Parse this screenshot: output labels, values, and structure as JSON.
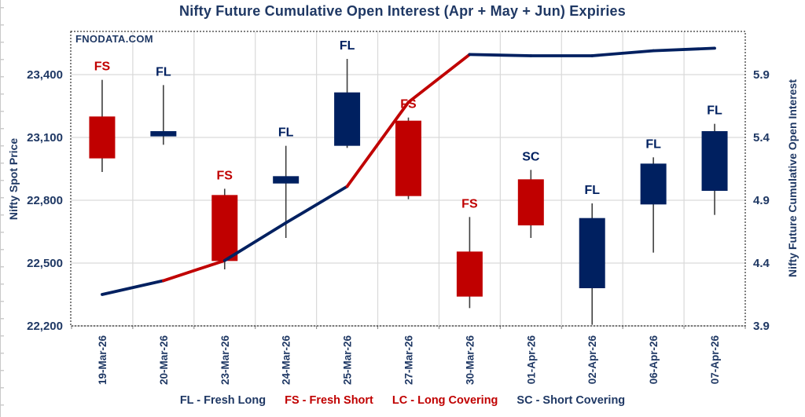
{
  "title": "Nifty Future Cumulative Open Interest (Apr + May + Jun) Expiries",
  "watermark": "FNODATA.COM",
  "legend": {
    "items": [
      {
        "text": "FL - Fresh Long",
        "color": "#1F3864"
      },
      {
        "text": "FS - Fresh Short",
        "color": "#C00000"
      },
      {
        "text": "LC - Long Covering",
        "color": "#C00000"
      },
      {
        "text": "SC - Short Covering",
        "color": "#1F3864"
      }
    ]
  },
  "chart_data": {
    "type": "candlestick+line",
    "title": "Nifty Future Cumulative Open Interest (Apr + May + Jun) Expiries",
    "categories": [
      "19-Mar-26",
      "20-Mar-26",
      "23-Mar-26",
      "24-Mar-26",
      "25-Mar-26",
      "27-Mar-26",
      "30-Mar-26",
      "01-Apr-26",
      "02-Apr-26",
      "06-Apr-26",
      "07-Apr-26"
    ],
    "left_axis": {
      "title": "Nifty Spot Price",
      "tick_labels": [
        "23,400",
        "23,100",
        "22,800",
        "22,500",
        "22,200"
      ],
      "tick_values": [
        23400,
        23100,
        22800,
        22500,
        22200
      ],
      "min": 22200,
      "max": 23606,
      "grid": true
    },
    "right_axis": {
      "title": "Nifty Future Cumulative Open Interest",
      "tick_labels": [
        "5.9",
        "5.4",
        "4.9",
        "4.4",
        "3.9"
      ],
      "tick_values": [
        5.9,
        5.4,
        4.9,
        4.4,
        3.9
      ],
      "min": 3.9,
      "max": 6.25
    },
    "candles": [
      {
        "date": "19-Mar-26",
        "open": 23200,
        "high": 23375,
        "low": 22935,
        "close": 23000,
        "body_color": "red",
        "label": "FS",
        "label_color": "red"
      },
      {
        "date": "20-Mar-26",
        "open": 23105,
        "high": 23350,
        "low": 23065,
        "close": 23130,
        "body_color": "navy",
        "label": "FL",
        "label_color": "navy"
      },
      {
        "date": "23-Mar-26",
        "open": 22825,
        "high": 22855,
        "low": 22470,
        "close": 22510,
        "body_color": "red",
        "label": "FS",
        "label_color": "red"
      },
      {
        "date": "24-Mar-26",
        "open": 22880,
        "high": 23060,
        "low": 22620,
        "close": 22915,
        "body_color": "navy",
        "label": "FL",
        "label_color": "navy"
      },
      {
        "date": "25-Mar-26",
        "open": 23060,
        "high": 23475,
        "low": 23050,
        "close": 23315,
        "body_color": "navy",
        "label": "FL",
        "label_color": "navy"
      },
      {
        "date": "27-Mar-26",
        "open": 23180,
        "high": 23195,
        "low": 22805,
        "close": 22820,
        "body_color": "red",
        "label": "FS",
        "label_color": "red"
      },
      {
        "date": "30-Mar-26",
        "open": 22555,
        "high": 22720,
        "low": 22285,
        "close": 22340,
        "body_color": "red",
        "label": "FS",
        "label_color": "red"
      },
      {
        "date": "01-Apr-26",
        "open": 22900,
        "high": 22945,
        "low": 22620,
        "close": 22680,
        "body_color": "red",
        "label": "SC",
        "label_color": "navy"
      },
      {
        "date": "02-Apr-26",
        "open": 22380,
        "high": 22785,
        "low": 22205,
        "close": 22715,
        "body_color": "navy",
        "label": "FL",
        "label_color": "navy"
      },
      {
        "date": "06-Apr-26",
        "open": 22780,
        "high": 23005,
        "low": 22550,
        "close": 22975,
        "body_color": "navy",
        "label": "FL",
        "label_color": "navy"
      },
      {
        "date": "07-Apr-26",
        "open": 22845,
        "high": 23165,
        "low": 22730,
        "close": 23130,
        "body_color": "navy",
        "label": "FL",
        "label_color": "navy"
      }
    ],
    "oi_line": {
      "name": "Nifty Future Cumulative Open Interest",
      "values": [
        4.15,
        4.26,
        4.42,
        4.72,
        5.01,
        5.68,
        6.06,
        6.05,
        6.05,
        6.09,
        6.11
      ],
      "segment_colors": [
        "navy",
        "red",
        "navy",
        "navy",
        "red",
        "red",
        "navy",
        "navy",
        "navy",
        "navy"
      ]
    },
    "colors": {
      "red": "#C00000",
      "navy": "#002060",
      "text": "#1F3864",
      "grid": "#D9D9D9",
      "axis_line": "#BFBFBF",
      "wick": "#3F3F3F",
      "border": "#000000"
    },
    "legend_position": "bottom"
  }
}
